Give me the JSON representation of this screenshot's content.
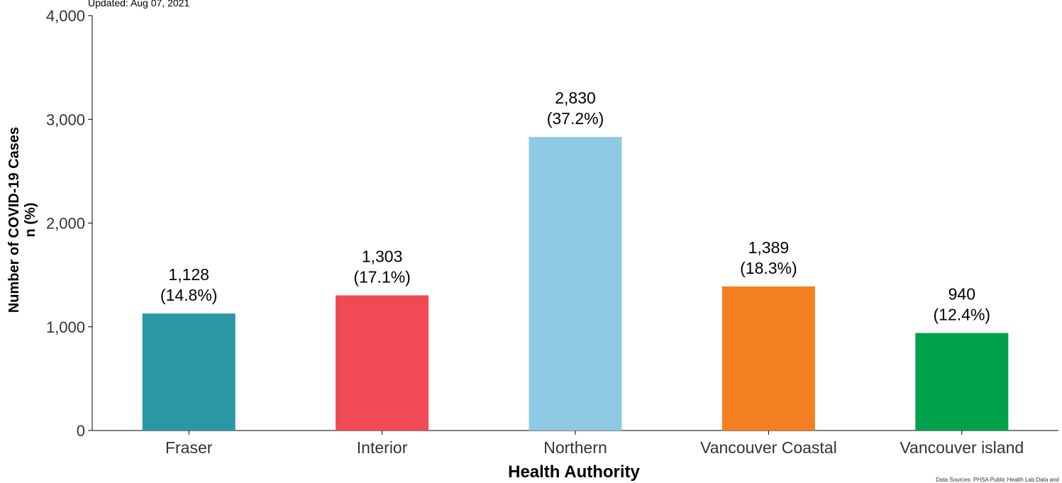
{
  "updated_text": "Updated: Aug 07, 2021",
  "source_text": "Data Sources: PHSA Public Health Lab Data and",
  "chart_data": {
    "type": "bar",
    "categories": [
      "Fraser",
      "Interior",
      "Northern",
      "Vancouver Coastal",
      "Vancouver island"
    ],
    "values": [
      1128,
      1303,
      2830,
      1389,
      940
    ],
    "value_labels": [
      "1,128",
      "1,303",
      "2,830",
      "1,389",
      "940"
    ],
    "percent_labels": [
      "(14.8%)",
      "(17.1%)",
      "(37.2%)",
      "(18.3%)",
      "(12.4%)"
    ],
    "colors": [
      "#2b96a6",
      "#ef4a55",
      "#8ecae3",
      "#f47f20",
      "#00a14b"
    ],
    "xlabel": "Health Authority",
    "ylabel": "Number of COVID-19 Cases",
    "ylabel2": "n (%)",
    "ylim": [
      0,
      4000
    ],
    "yticks": [
      0,
      1000,
      2000,
      3000,
      4000
    ],
    "ytick_labels": [
      "0",
      "1,000",
      "2,000",
      "3,000",
      "4,000"
    ],
    "grid": false,
    "legend": "none"
  }
}
